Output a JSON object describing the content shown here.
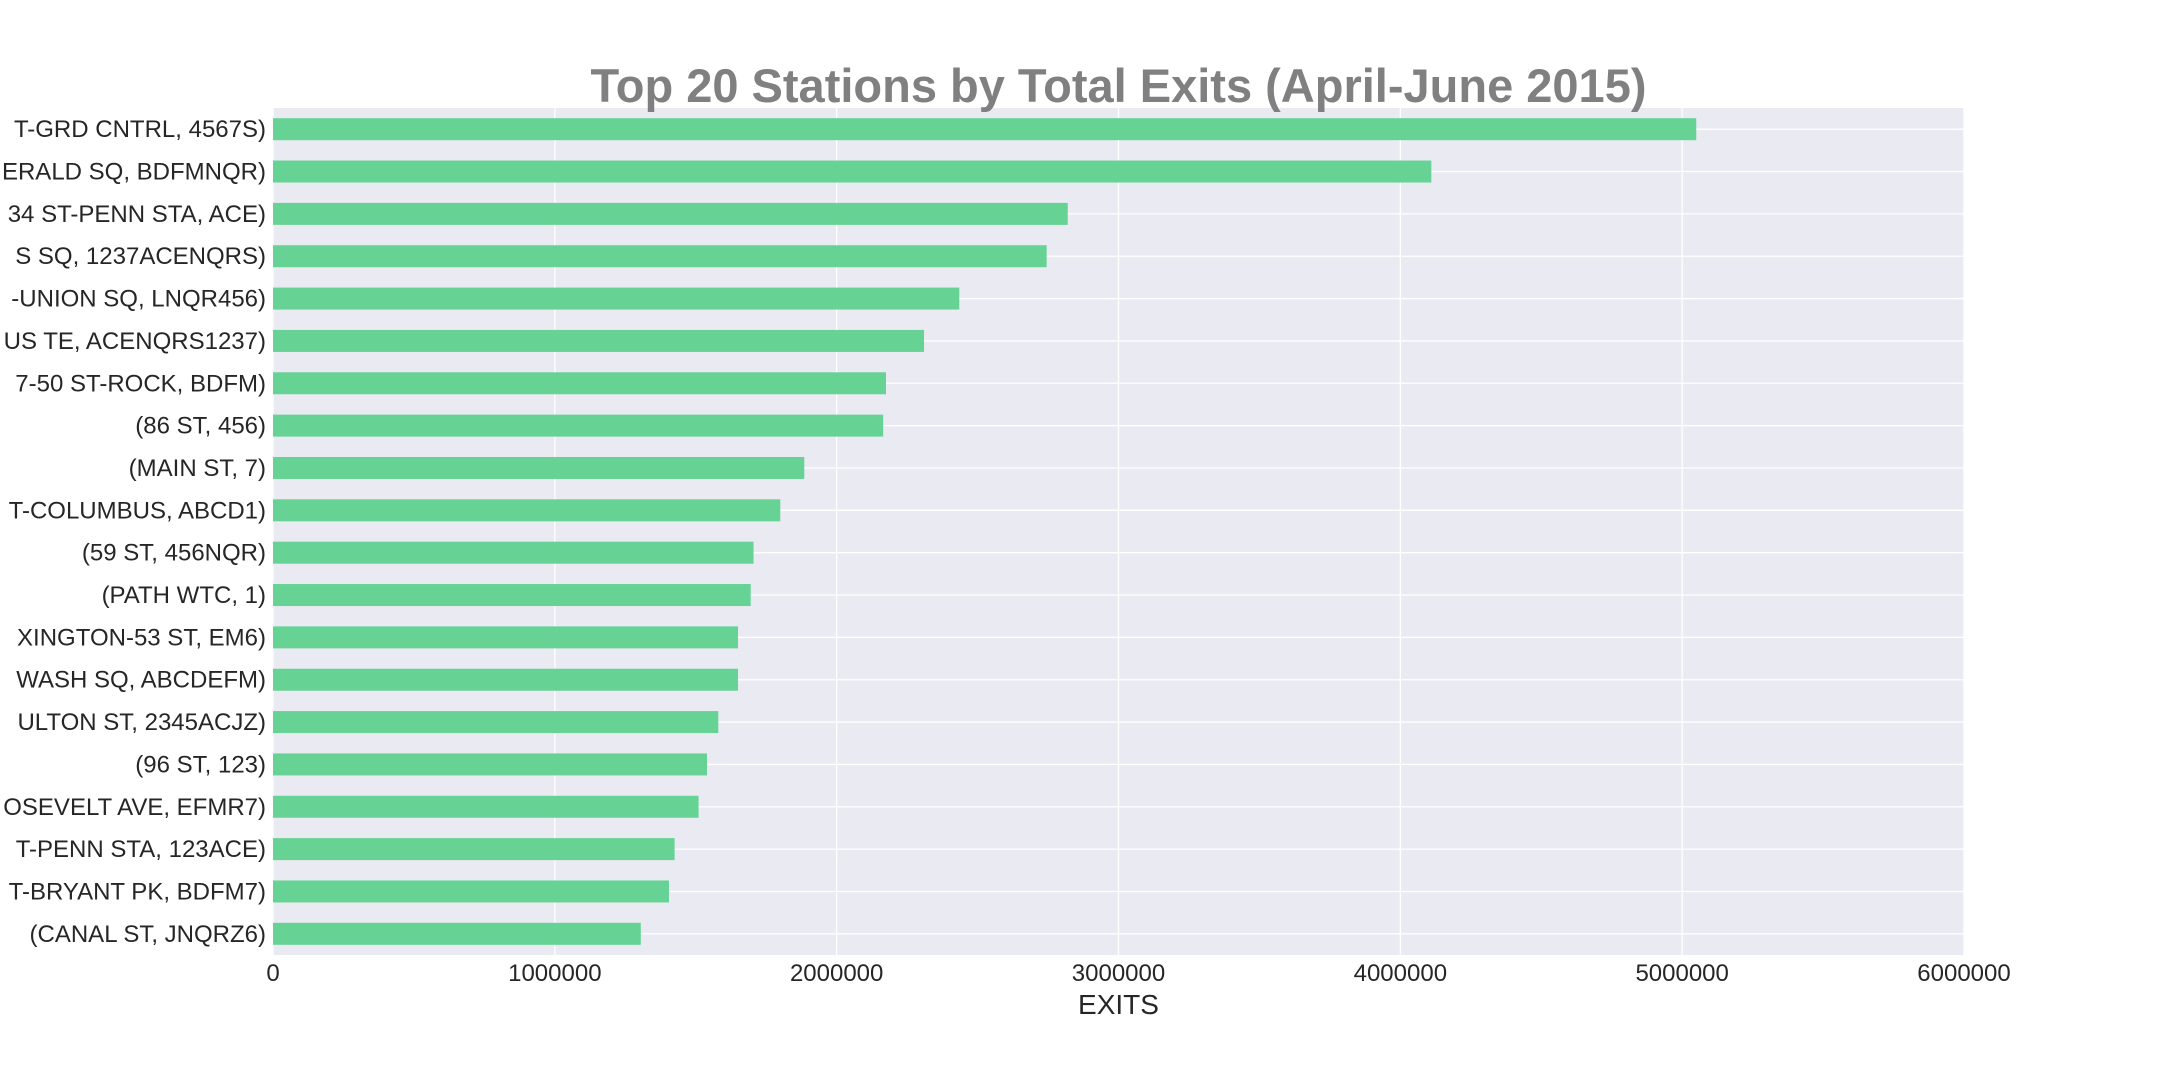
{
  "chart_data": {
    "type": "bar",
    "orientation": "horizontal",
    "title": "Top 20 Stations by Total Exits (April-June 2015)",
    "xlabel": "EXITS",
    "ylabel": "",
    "xlim": [
      0,
      6000000
    ],
    "xticks": [
      "0",
      "1000000",
      "2000000",
      "3000000",
      "4000000",
      "5000000",
      "6000000"
    ],
    "grid": true,
    "legend": "none",
    "colors": {
      "bar": "#66d395",
      "plot_background": "#eaeaf2",
      "grid": "#ffffff",
      "title": "#808080",
      "text": "#262626"
    },
    "categories": [
      "T-GRD CNTRL, 4567S)",
      "ERALD SQ, BDFMNQR)",
      "34 ST-PENN STA, ACE)",
      "S SQ, 1237ACENQRS)",
      "-UNION SQ, LNQR456)",
      "US TE, ACENQRS1237)",
      "7-50 ST-ROCK, BDFM)",
      "(86 ST, 456)",
      "(MAIN ST, 7)",
      "T-COLUMBUS, ABCD1)",
      "(59 ST, 456NQR)",
      "(PATH WTC, 1)",
      "XINGTON-53 ST, EM6)",
      "WASH SQ, ABCDEFM)",
      "ULTON ST, 2345ACJZ)",
      "(96 ST, 123)",
      "OSEVELT AVE, EFMR7)",
      "T-PENN STA, 123ACE)",
      "T-BRYANT PK, BDFM7)",
      "(CANAL ST, JNQRZ6)"
    ],
    "values": [
      5050000,
      4110000,
      2820000,
      2745000,
      2435000,
      2310000,
      2175000,
      2165000,
      1885000,
      1800000,
      1705000,
      1695000,
      1650000,
      1650000,
      1580000,
      1540000,
      1510000,
      1425000,
      1405000,
      1305000
    ]
  }
}
